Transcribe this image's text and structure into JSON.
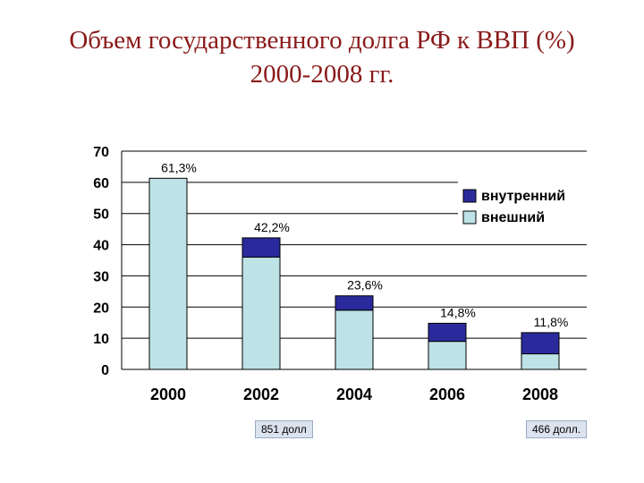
{
  "title": {
    "line1": "Объем государственного долга РФ к ВВП (%)",
    "line2": "2000-2008 гг."
  },
  "chart_data": {
    "type": "bar",
    "stacked": true,
    "categories": [
      "2000",
      "2002",
      "2004",
      "2006",
      "2008"
    ],
    "series": [
      {
        "name": "внешний",
        "values": [
          61.3,
          36,
          19,
          9,
          5
        ],
        "color": "#bde3e6"
      },
      {
        "name": "внутренний",
        "values": [
          0,
          6.2,
          4.6,
          5.8,
          6.8
        ],
        "color": "#2a2a9c"
      }
    ],
    "totals_labels": [
      "61,3%",
      "42,2%",
      "23,6%",
      "14,8%",
      "11,8%"
    ],
    "ylim": [
      0,
      70
    ],
    "yticks": [
      0,
      10,
      20,
      30,
      40,
      50,
      60,
      70
    ],
    "grid": true,
    "legend": "top-right",
    "legend_order": [
      "внутренний",
      "внешний"
    ]
  },
  "notes": {
    "left": "851 долл",
    "right": "466 долл."
  }
}
